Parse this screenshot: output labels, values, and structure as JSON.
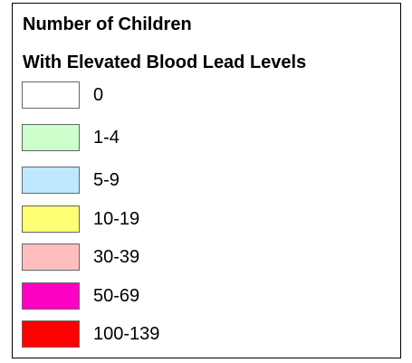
{
  "legend": {
    "title_lines": [
      "Number of Children",
      "With Elevated Blood Lead Levels"
    ],
    "items": [
      {
        "label": "0",
        "color": "#ffffff"
      },
      {
        "label": "1-4",
        "color": "#ccffcc"
      },
      {
        "label": "5-9",
        "color": "#bee8ff"
      },
      {
        "label": "10-19",
        "color": "#ffff73"
      },
      {
        "label": "30-39",
        "color": "#ffbebe"
      },
      {
        "label": "50-69",
        "color": "#ff00c5"
      },
      {
        "label": "100-139",
        "color": "#ff0000"
      }
    ]
  }
}
